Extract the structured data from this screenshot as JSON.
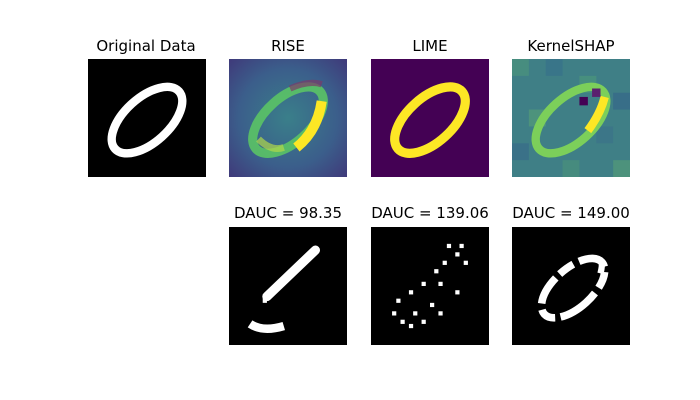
{
  "figure": {
    "titles": {
      "original": "Original Data",
      "rise": "RISE",
      "lime": "LIME",
      "kernelshap": "KernelSHAP"
    },
    "metrics": {
      "rise": "DAUC = 98.35",
      "lime": "DAUC = 139.06",
      "kernelshap": "DAUC = 149.00"
    }
  },
  "colors": {
    "background_black": "#000000",
    "digit_white": "#ffffff",
    "viridis_dark": "#440154",
    "viridis_blue": "#3b528b",
    "viridis_teal": "#21908c",
    "viridis_green": "#5dc963",
    "viridis_yellow": "#fde725"
  }
}
